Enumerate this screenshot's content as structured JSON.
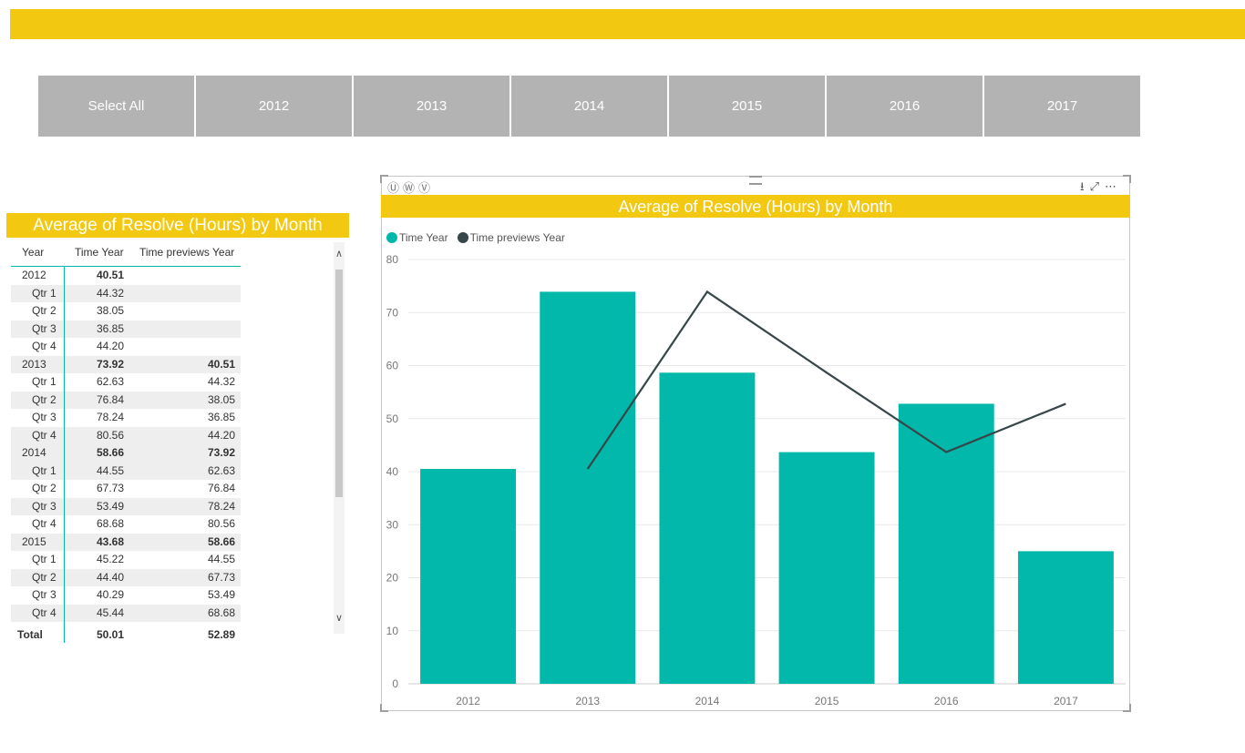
{
  "colors": {
    "accent": "#F2C811",
    "teal": "#01B8AA",
    "dark": "#374649",
    "slicer": "#B3B3B3"
  },
  "slicer": {
    "items": [
      {
        "label": "Select All"
      },
      {
        "label": "2012"
      },
      {
        "label": "2013"
      },
      {
        "label": "2014"
      },
      {
        "label": "2015"
      },
      {
        "label": "2016"
      },
      {
        "label": "2017"
      }
    ]
  },
  "matrix": {
    "title": "Average of Resolve (Hours) by Month",
    "headers": [
      "Year",
      "Time Year",
      "Time previews Year"
    ],
    "rows": [
      {
        "label": "2012",
        "level": "year",
        "time_year": "40.51",
        "time_prev": ""
      },
      {
        "label": "Qtr 1",
        "level": "qtr",
        "time_year": "44.32",
        "time_prev": ""
      },
      {
        "label": "Qtr 2",
        "level": "qtr",
        "time_year": "38.05",
        "time_prev": ""
      },
      {
        "label": "Qtr 3",
        "level": "qtr",
        "time_year": "36.85",
        "time_prev": ""
      },
      {
        "label": "Qtr 4",
        "level": "qtr",
        "time_year": "44.20",
        "time_prev": ""
      },
      {
        "label": "2013",
        "level": "year",
        "time_year": "73.92",
        "time_prev": "40.51"
      },
      {
        "label": "Qtr 1",
        "level": "qtr",
        "time_year": "62.63",
        "time_prev": "44.32"
      },
      {
        "label": "Qtr 2",
        "level": "qtr",
        "time_year": "76.84",
        "time_prev": "38.05"
      },
      {
        "label": "Qtr 3",
        "level": "qtr",
        "time_year": "78.24",
        "time_prev": "36.85"
      },
      {
        "label": "Qtr 4",
        "level": "qtr",
        "time_year": "80.56",
        "time_prev": "44.20"
      },
      {
        "label": "2014",
        "level": "year",
        "time_year": "58.66",
        "time_prev": "73.92"
      },
      {
        "label": "Qtr 1",
        "level": "qtr",
        "time_year": "44.55",
        "time_prev": "62.63"
      },
      {
        "label": "Qtr 2",
        "level": "qtr",
        "time_year": "67.73",
        "time_prev": "76.84"
      },
      {
        "label": "Qtr 3",
        "level": "qtr",
        "time_year": "53.49",
        "time_prev": "78.24"
      },
      {
        "label": "Qtr 4",
        "level": "qtr",
        "time_year": "68.68",
        "time_prev": "80.56"
      },
      {
        "label": "2015",
        "level": "year",
        "time_year": "43.68",
        "time_prev": "58.66"
      },
      {
        "label": "Qtr 1",
        "level": "qtr",
        "time_year": "45.22",
        "time_prev": "44.55"
      },
      {
        "label": "Qtr 2",
        "level": "qtr",
        "time_year": "44.40",
        "time_prev": "67.73"
      },
      {
        "label": "Qtr 3",
        "level": "qtr",
        "time_year": "40.29",
        "time_prev": "53.49"
      },
      {
        "label": "Qtr 4",
        "level": "qtr",
        "time_year": "45.44",
        "time_prev": "68.68"
      }
    ],
    "total": {
      "label": "Total",
      "time_year": "50.01",
      "time_prev": "52.89"
    }
  },
  "chart_data": {
    "type": "bar",
    "title": "Average of Resolve (Hours) by Month",
    "categories": [
      "2012",
      "2013",
      "2014",
      "2015",
      "2016",
      "2017"
    ],
    "series": [
      {
        "name": "Time Year",
        "type": "bar",
        "color": "#01B8AA",
        "values": [
          40.51,
          73.92,
          58.66,
          43.68,
          52.8,
          25.0
        ]
      },
      {
        "name": "Time previews Year",
        "type": "line",
        "color": "#374649",
        "values": [
          null,
          40.51,
          73.92,
          58.66,
          43.68,
          52.8
        ]
      }
    ],
    "ylim": [
      0,
      80
    ],
    "yticks": [
      0,
      10,
      20,
      30,
      40,
      50,
      60,
      70,
      80
    ],
    "grid": true,
    "legend_position": "top-left"
  }
}
